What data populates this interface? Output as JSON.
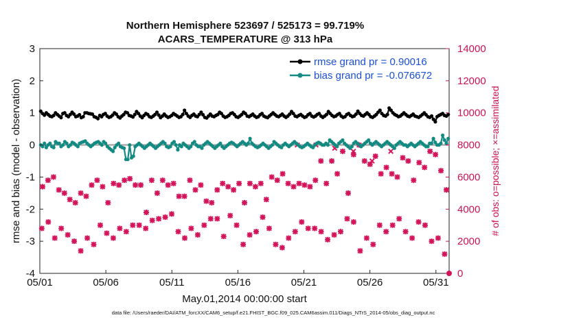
{
  "chart_data": {
    "type": "line",
    "title": "Northern Hemisphere 523697 / 525173 = 99.719%",
    "subtitle": "ACARS_TEMPERATURE @ 313 hPa",
    "xlabel": "May.01,2014 00:00:00 start",
    "ylabel_left": "rmse and bias (model - observation)",
    "ylabel_right": "# of obs: o=possible; ×=assimilated",
    "footer": "data file: /Users/raeder/DAI/ATM_forcXX/CAM6_setup/f.e21.FHIST_BGC.f09_025.CAM6assim.011/Diags_NTrS_2014-05/obs_diag_output.nc",
    "x_tick_labels": [
      "05/01",
      "05/06",
      "05/11",
      "05/16",
      "05/21",
      "05/26",
      "05/31"
    ],
    "x_tick_days": [
      0,
      5,
      10,
      15,
      20,
      25,
      30
    ],
    "xlim_days": [
      0,
      31
    ],
    "ylim_left": [
      -4,
      3
    ],
    "y_ticks_left": [
      "-4",
      "-3",
      "-2",
      "-1",
      "0",
      "1",
      "2",
      "3"
    ],
    "ylim_right": [
      0,
      14000
    ],
    "y_ticks_right": [
      "0",
      "2000",
      "4000",
      "6000",
      "8000",
      "10000",
      "12000",
      "14000"
    ],
    "grid": false,
    "legend_position": "top-right",
    "colors": {
      "rmse": "#000000",
      "bias": "#138a82",
      "obs": "#d4145a",
      "zero_line": "#a0a0a0"
    },
    "series": [
      {
        "name": "rmse grand pr = 0.90016",
        "values": [
          1.05,
          0.98,
          0.93,
          1.0,
          0.95,
          0.9,
          0.88,
          0.92,
          1.0,
          0.95,
          0.9,
          0.85,
          0.98,
          1.0,
          0.92,
          0.88,
          0.95,
          1.02,
          0.96,
          0.88,
          0.9,
          0.94,
          0.85,
          0.88,
          1.0,
          1.0,
          0.98,
          0.97,
          0.96,
          0.88,
          0.86,
          0.82,
          0.92,
          0.88,
          0.95,
          0.98,
          0.9,
          0.86,
          0.88,
          0.93,
          1.0,
          0.96,
          0.88,
          0.84,
          0.9,
          0.95,
          1.02,
          1.0,
          0.92,
          0.9,
          0.87,
          0.95,
          1.04,
          0.98,
          0.9,
          0.85,
          0.92,
          0.98,
          0.95,
          0.88,
          0.86,
          0.9,
          0.95,
          1.02,
          0.93,
          0.85,
          0.9,
          0.96,
          0.9,
          0.86,
          0.88,
          0.92,
          0.98,
          0.94,
          0.9,
          0.86,
          0.88,
          0.95,
          1.08,
          0.98,
          0.9,
          0.86,
          0.92,
          0.96,
          0.9,
          0.88,
          0.95,
          1.02,
          0.94,
          0.86,
          0.84,
          0.9,
          0.96,
          0.9,
          0.88,
          0.92,
          0.95,
          1.02,
          0.98,
          0.9,
          0.86,
          0.88,
          0.92,
          0.98,
          1.0,
          0.95,
          0.88,
          0.86,
          0.9,
          0.95,
          1.02,
          0.98,
          0.9,
          0.88,
          0.92,
          0.96,
          0.9,
          0.86,
          0.88,
          0.94,
          0.98,
          0.9,
          0.87,
          0.85,
          0.9,
          0.95,
          1.0,
          0.95,
          0.9,
          0.88,
          0.92,
          0.96,
          0.9,
          0.86,
          0.9,
          0.96,
          1.04,
          0.98,
          0.9,
          0.88,
          0.92,
          0.95,
          0.9,
          0.86,
          0.88,
          0.94,
          0.98,
          0.9,
          0.87,
          0.9,
          0.95,
          0.98,
          0.9,
          0.86,
          0.9,
          0.95,
          1.04,
          0.98,
          0.92,
          0.88,
          0.9,
          0.95,
          0.98,
          0.9,
          0.86,
          0.88,
          0.95,
          0.98,
          0.92,
          0.88,
          0.9,
          0.96,
          1.05,
          0.98,
          0.92,
          0.9,
          0.95,
          1.0,
          0.95,
          0.88,
          0.86,
          0.9,
          0.95,
          1.02,
          1.08,
          0.98,
          0.92,
          0.9,
          0.95,
          1.15,
          1.08,
          1.0,
          0.95,
          0.92,
          0.88,
          0.9,
          0.95,
          1.0,
          0.95,
          0.9,
          0.88,
          0.92,
          0.96,
          0.9,
          0.88,
          0.86,
          0.9,
          0.95,
          1.0,
          0.94,
          0.88,
          0.86,
          0.9,
          0.8,
          0.72,
          0.88,
          0.92,
          0.95,
          0.98,
          0.92,
          0.9,
          0.95
        ]
      },
      {
        "name": "bias grand pr = -0.076672",
        "values": [
          0.0,
          -0.05,
          0.05,
          -0.08,
          0.0,
          0.05,
          -0.05,
          -0.08,
          0.1,
          0.05,
          0.05,
          -0.05,
          0.0,
          0.1,
          0.05,
          -0.05,
          0.0,
          0.08,
          0.05,
          0.0,
          -0.05,
          0.05,
          0.08,
          0.1,
          0.12,
          0.05,
          0.0,
          -0.05,
          0.0,
          0.05,
          0.08,
          0.1,
          0.05,
          0.0,
          0.1,
          0.05,
          -0.05,
          -0.1,
          -0.15,
          -0.2,
          -0.08,
          0.0,
          0.05,
          -0.05,
          -0.08,
          -0.1,
          -0.45,
          -0.45,
          0.0,
          -0.4,
          -0.35,
          -0.05,
          0.0,
          0.05,
          0.0,
          -0.05,
          -0.1,
          -0.05,
          0.0,
          0.05,
          0.0,
          -0.05,
          -0.1,
          -0.05,
          0.0,
          0.05,
          0.1,
          0.05,
          -0.05,
          -0.08,
          -0.05,
          0.05,
          0.1,
          0.0,
          -0.15,
          0.0,
          -0.05,
          0.05,
          0.0,
          -0.05,
          -0.1,
          -0.05,
          0.05,
          0.1,
          0.0,
          -0.05,
          -0.05,
          -0.1,
          0.0,
          0.05,
          0.1,
          0.05,
          0.0,
          -0.05,
          -0.1,
          -0.05,
          0.0,
          0.05,
          -0.05,
          -0.1,
          -0.05,
          0.0,
          0.05,
          0.08,
          0.05,
          0.0,
          -0.05,
          0.0,
          0.05,
          0.1,
          0.05,
          0.0,
          0.05,
          0.2,
          0.05,
          0.0,
          -0.05,
          -0.08,
          -0.05,
          0.0,
          0.05,
          0.0,
          -0.05,
          -0.1,
          -0.05,
          0.0,
          0.1,
          0.05,
          0.0,
          -0.05,
          -0.08,
          0.0,
          0.05,
          0.0,
          -0.05,
          0.0,
          0.05,
          0.1,
          0.05,
          0.0,
          -0.05,
          -0.08,
          -0.05,
          0.0,
          0.05,
          0.0,
          -0.05,
          -0.08,
          0.0,
          0.05,
          0.08,
          0.05,
          0.0,
          0.0,
          0.05,
          0.0,
          0.15,
          0.1,
          0.05,
          0.0,
          -0.05,
          0.05,
          0.1,
          0.15,
          0.05,
          0.0,
          -0.05,
          -0.1,
          -0.05,
          0.05,
          0.1,
          0.05,
          0.0,
          -0.05,
          0.0,
          0.05,
          0.1,
          0.15,
          0.05,
          0.0,
          0.05,
          0.1,
          0.05,
          0.0,
          -0.05,
          0.0,
          0.05,
          0.1,
          0.05,
          0.0,
          -0.05,
          -0.1,
          0.0,
          0.05,
          0.1,
          0.05,
          0.0,
          0.0,
          -0.05,
          0.0,
          0.05,
          0.0,
          -0.05,
          0.0,
          0.05,
          0.1,
          0.05,
          0.0,
          -0.05,
          -0.05,
          0.05,
          0.05,
          0.2,
          0.08,
          0.0,
          0.0,
          0.05,
          0.3,
          0.15,
          0.05,
          0.2
        ]
      }
    ],
    "obs_counts": {
      "assimilated_high": [
        5400,
        5800,
        6000,
        5200,
        5000,
        4600,
        4400,
        5000,
        4800,
        5500,
        5800,
        5400,
        4400,
        5600,
        5500,
        5800,
        5900,
        5500,
        5500,
        3800,
        5800,
        5000,
        5800,
        5500,
        5600,
        4800,
        4800,
        5800,
        5200,
        5500,
        4500,
        4400,
        5200,
        5600,
        5400,
        5200,
        5600,
        4400,
        5600,
        5400,
        5600,
        4600,
        6000,
        5800,
        6200,
        5600,
        5400,
        5600,
        5500,
        5400,
        5800,
        7000,
        5600,
        7000,
        6200,
        7600,
        5000,
        7400,
        8000,
        7000,
        6800,
        7300,
        6200,
        6600,
        6200,
        6000,
        7200,
        7000,
        5800,
        6900,
        6600,
        7600,
        7400,
        6400,
        5200
      ],
      "assimilated_low": [
        2800,
        3200,
        2200,
        2800,
        2400,
        2000,
        1400,
        2200,
        1800,
        3000,
        2500,
        2200,
        2800,
        2600,
        3000,
        3000,
        2800,
        3300,
        3400,
        3500,
        3700,
        2600,
        2200,
        2800,
        2400,
        3000,
        3400,
        3400,
        2300,
        3600,
        3000,
        1800,
        2400,
        2600,
        3500,
        2800,
        1800,
        1600,
        2200,
        2600,
        3200,
        2800,
        2800,
        2600,
        2100,
        2400,
        2600,
        3400,
        3200,
        1400,
        2200,
        1800,
        3000,
        2600,
        3000,
        3400,
        2600,
        2200,
        3200,
        3000,
        2000,
        2200,
        1200
      ],
      "assimilated_extra": [
        8000,
        8000,
        7800,
        7600,
        7000,
        7600
      ]
    }
  }
}
